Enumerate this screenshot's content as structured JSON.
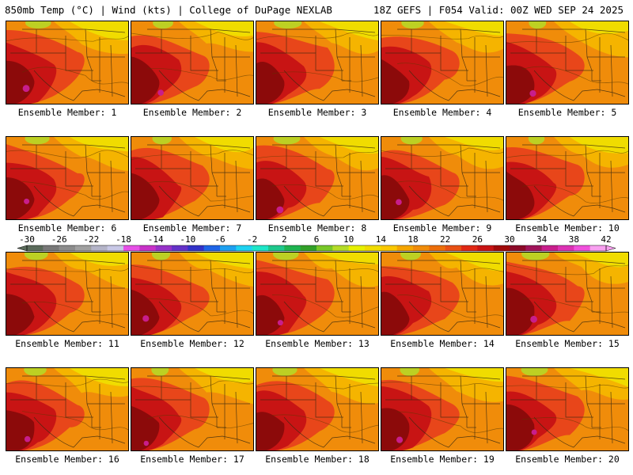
{
  "header": {
    "left": "850mb Temp (°C) | Wind (kts) | College of DuPage NEXLAB",
    "right": "18Z GEFS | F054 Valid: 00Z WED SEP 24 2025"
  },
  "panels": [
    {
      "label": "Ensemble Member: 1",
      "variant": 1
    },
    {
      "label": "Ensemble Member: 2",
      "variant": 2
    },
    {
      "label": "Ensemble Member: 3",
      "variant": 3
    },
    {
      "label": "Ensemble Member: 4",
      "variant": 4
    },
    {
      "label": "Ensemble Member: 5",
      "variant": 5
    },
    {
      "label": "Ensemble Member: 6",
      "variant": 6
    },
    {
      "label": "Ensemble Member: 7",
      "variant": 7
    },
    {
      "label": "Ensemble Member: 8",
      "variant": 8
    },
    {
      "label": "Ensemble Member: 9",
      "variant": 9
    },
    {
      "label": "Ensemble Member: 10",
      "variant": 10
    },
    {
      "label": "Ensemble Member: 11",
      "variant": 11
    },
    {
      "label": "Ensemble Member: 12",
      "variant": 12
    },
    {
      "label": "Ensemble Member: 13",
      "variant": 13
    },
    {
      "label": "Ensemble Member: 14",
      "variant": 14
    },
    {
      "label": "Ensemble Member: 15",
      "variant": 15
    },
    {
      "label": "Ensemble Member: 16",
      "variant": 16
    },
    {
      "label": "Ensemble Member: 17",
      "variant": 17
    },
    {
      "label": "Ensemble Member: 18",
      "variant": 18
    },
    {
      "label": "Ensemble Member: 19",
      "variant": 19
    },
    {
      "label": "Ensemble Member: 20",
      "variant": 20
    }
  ],
  "colorbar": {
    "tick_labels": [
      "-30",
      "-26",
      "-22",
      "-18",
      "-14",
      "-10",
      "-6",
      "-2",
      "2",
      "6",
      "10",
      "14",
      "18",
      "22",
      "26",
      "30",
      "34",
      "38",
      "42"
    ],
    "colors": [
      "#5a6a5a",
      "#787878",
      "#8c8c8c",
      "#a0a0a0",
      "#b4b4c8",
      "#c8c8e6",
      "#e650e6",
      "#c832c8",
      "#9632c8",
      "#6432c8",
      "#3232c8",
      "#1e64e6",
      "#1ea0f0",
      "#1ed2f0",
      "#1ee6c8",
      "#1ec88c",
      "#1eb450",
      "#32a028",
      "#78c828",
      "#b4dc28",
      "#e6f000",
      "#f0dc00",
      "#fac800",
      "#f5a500",
      "#f08c0a",
      "#ec6e0a",
      "#e85014",
      "#e02814",
      "#c81414",
      "#a00a0a",
      "#8c0a28",
      "#a0145a",
      "#c81e8c",
      "#dc32b4",
      "#f050dc",
      "#f8a0f0"
    ]
  },
  "map_colors": {
    "deep_red": "#8c0a0a",
    "red": "#c81414",
    "red_orange": "#e8461a",
    "orange": "#f08c0a",
    "yellow_orange": "#f5b400",
    "yellow": "#f0dc00",
    "lime": "#b4dc28",
    "magenta": "#c81e8c"
  }
}
